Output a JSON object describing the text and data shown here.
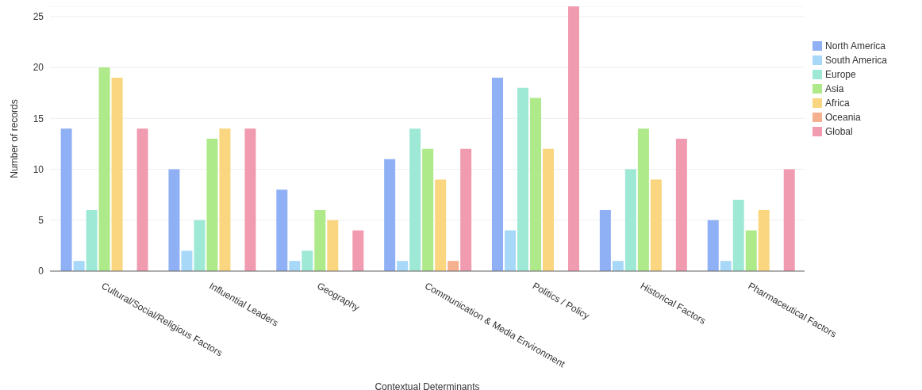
{
  "chart_data": {
    "type": "bar",
    "xlabel": "Contextual Determinants",
    "ylabel": "Number of records",
    "categories": [
      "Cultural/Social/Religious Factors",
      "Influential Leaders",
      "Geography",
      "Communication & Media Environment",
      "Politics / Policy",
      "Historical Factors",
      "Pharmaceutical Factors"
    ],
    "series": [
      {
        "name": "North America",
        "color": "#8fb0f5",
        "values": [
          14,
          10,
          8,
          11,
          19,
          6,
          5
        ]
      },
      {
        "name": "South America",
        "color": "#a8d8f8",
        "values": [
          1,
          2,
          1,
          1,
          4,
          1,
          1
        ]
      },
      {
        "name": "Europe",
        "color": "#9ee8d6",
        "values": [
          6,
          5,
          2,
          14,
          18,
          10,
          7
        ]
      },
      {
        "name": "Asia",
        "color": "#aee98a",
        "values": [
          20,
          13,
          6,
          12,
          17,
          14,
          4
        ]
      },
      {
        "name": "Africa",
        "color": "#f9d67f",
        "values": [
          19,
          14,
          5,
          9,
          12,
          9,
          6
        ]
      },
      {
        "name": "Oceania",
        "color": "#f5b08f",
        "values": [
          0,
          0,
          0,
          1,
          0,
          0,
          0
        ]
      },
      {
        "name": "Global",
        "color": "#f19bb0",
        "values": [
          14,
          14,
          4,
          12,
          26,
          13,
          10
        ]
      }
    ],
    "ylim": [
      0,
      26
    ],
    "yticks": [
      0,
      5,
      10,
      15,
      20,
      25
    ],
    "grid": "y",
    "legend": "right"
  }
}
